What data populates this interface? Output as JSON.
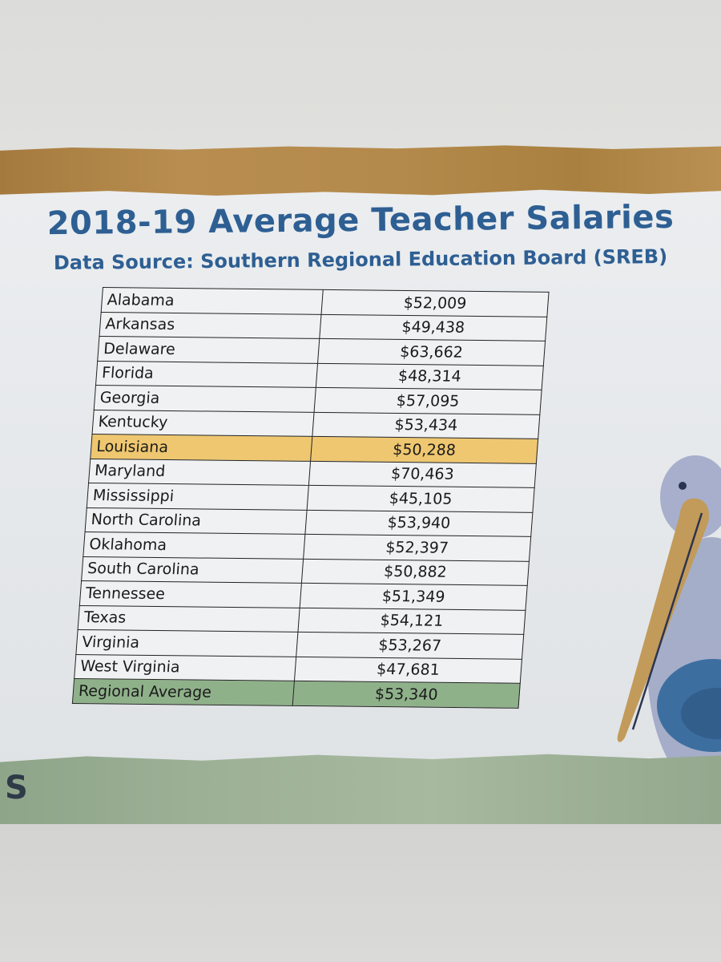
{
  "poster": {
    "title": "2018-19 Average Teacher Salaries",
    "subtitle": "Data Source:  Southern Regional Education Board (SREB)",
    "corner_letter": "S"
  },
  "colors": {
    "title": "#2e5f93",
    "highlight_row": "#eec770",
    "average_row": "#8fb18a",
    "top_band": "#b48a4c",
    "bottom_band": "#9db197"
  },
  "table": {
    "rows": [
      {
        "state": "Alabama",
        "salary": "$52,009"
      },
      {
        "state": "Arkansas",
        "salary": "$49,438"
      },
      {
        "state": "Delaware",
        "salary": "$63,662"
      },
      {
        "state": "Florida",
        "salary": "$48,314"
      },
      {
        "state": "Georgia",
        "salary": "$57,095"
      },
      {
        "state": "Kentucky",
        "salary": "$53,434"
      },
      {
        "state": "Louisiana",
        "salary": "$50,288",
        "highlight": true
      },
      {
        "state": "Maryland",
        "salary": "$70,463"
      },
      {
        "state": "Mississippi",
        "salary": "$45,105"
      },
      {
        "state": "North Carolina",
        "salary": "$53,940"
      },
      {
        "state": "Oklahoma",
        "salary": "$52,397"
      },
      {
        "state": "South Carolina",
        "salary": "$50,882"
      },
      {
        "state": "Tennessee",
        "salary": "$51,349"
      },
      {
        "state": "Texas",
        "salary": "$54,121"
      },
      {
        "state": "Virginia",
        "salary": "$53,267"
      },
      {
        "state": "West Virginia",
        "salary": "$47,681"
      }
    ],
    "average": {
      "label": "Regional Average",
      "salary": "$53,340"
    }
  }
}
